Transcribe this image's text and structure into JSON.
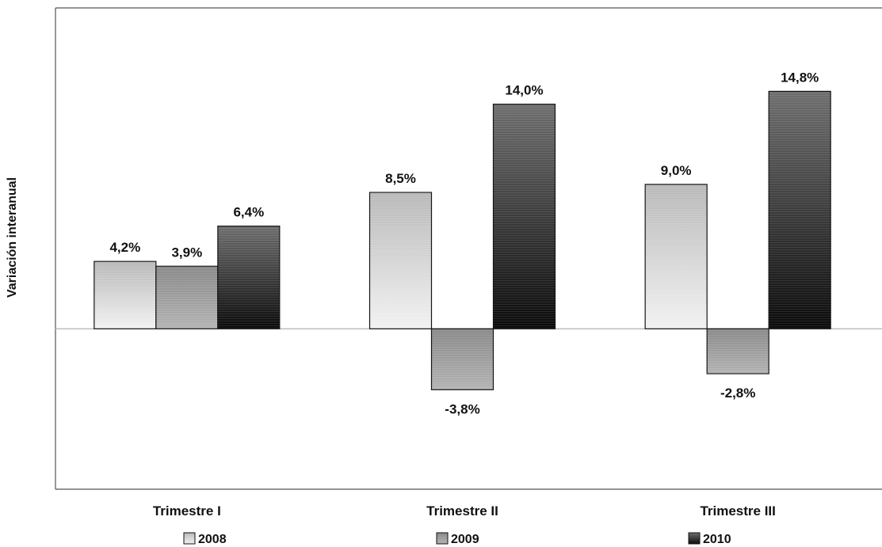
{
  "chart_data": {
    "type": "bar",
    "categories": [
      "Trimestre I",
      "Trimestre II",
      "Trimestre III"
    ],
    "series": [
      {
        "name": "2008",
        "values": [
          4.2,
          8.5,
          9.0
        ],
        "labels": [
          "4,2%",
          "8,5%",
          "9,0%"
        ],
        "gradient": [
          "#b9b9b9",
          "#f2f2f2"
        ]
      },
      {
        "name": "2009",
        "values": [
          3.9,
          -3.8,
          -2.8
        ],
        "labels": [
          "3,9%",
          "-3,8%",
          "-2,8%"
        ],
        "gradient": [
          "#8a8a8a",
          "#b3b3b3"
        ]
      },
      {
        "name": "2010",
        "values": [
          6.4,
          14.0,
          14.8
        ],
        "labels": [
          "6,4%",
          "14,0%",
          "14,8%"
        ],
        "gradient": [
          "#6e6e6e",
          "#0a0a0a"
        ]
      }
    ],
    "ylabel": "Variación interanual",
    "xlabel": "",
    "title": "",
    "ylim": [
      -10,
      20
    ],
    "grid": false,
    "legend_position": "bottom",
    "colors": {
      "axis": "#555555",
      "zero_line": "#bdbdbd",
      "bar_stroke": "#111111"
    }
  }
}
